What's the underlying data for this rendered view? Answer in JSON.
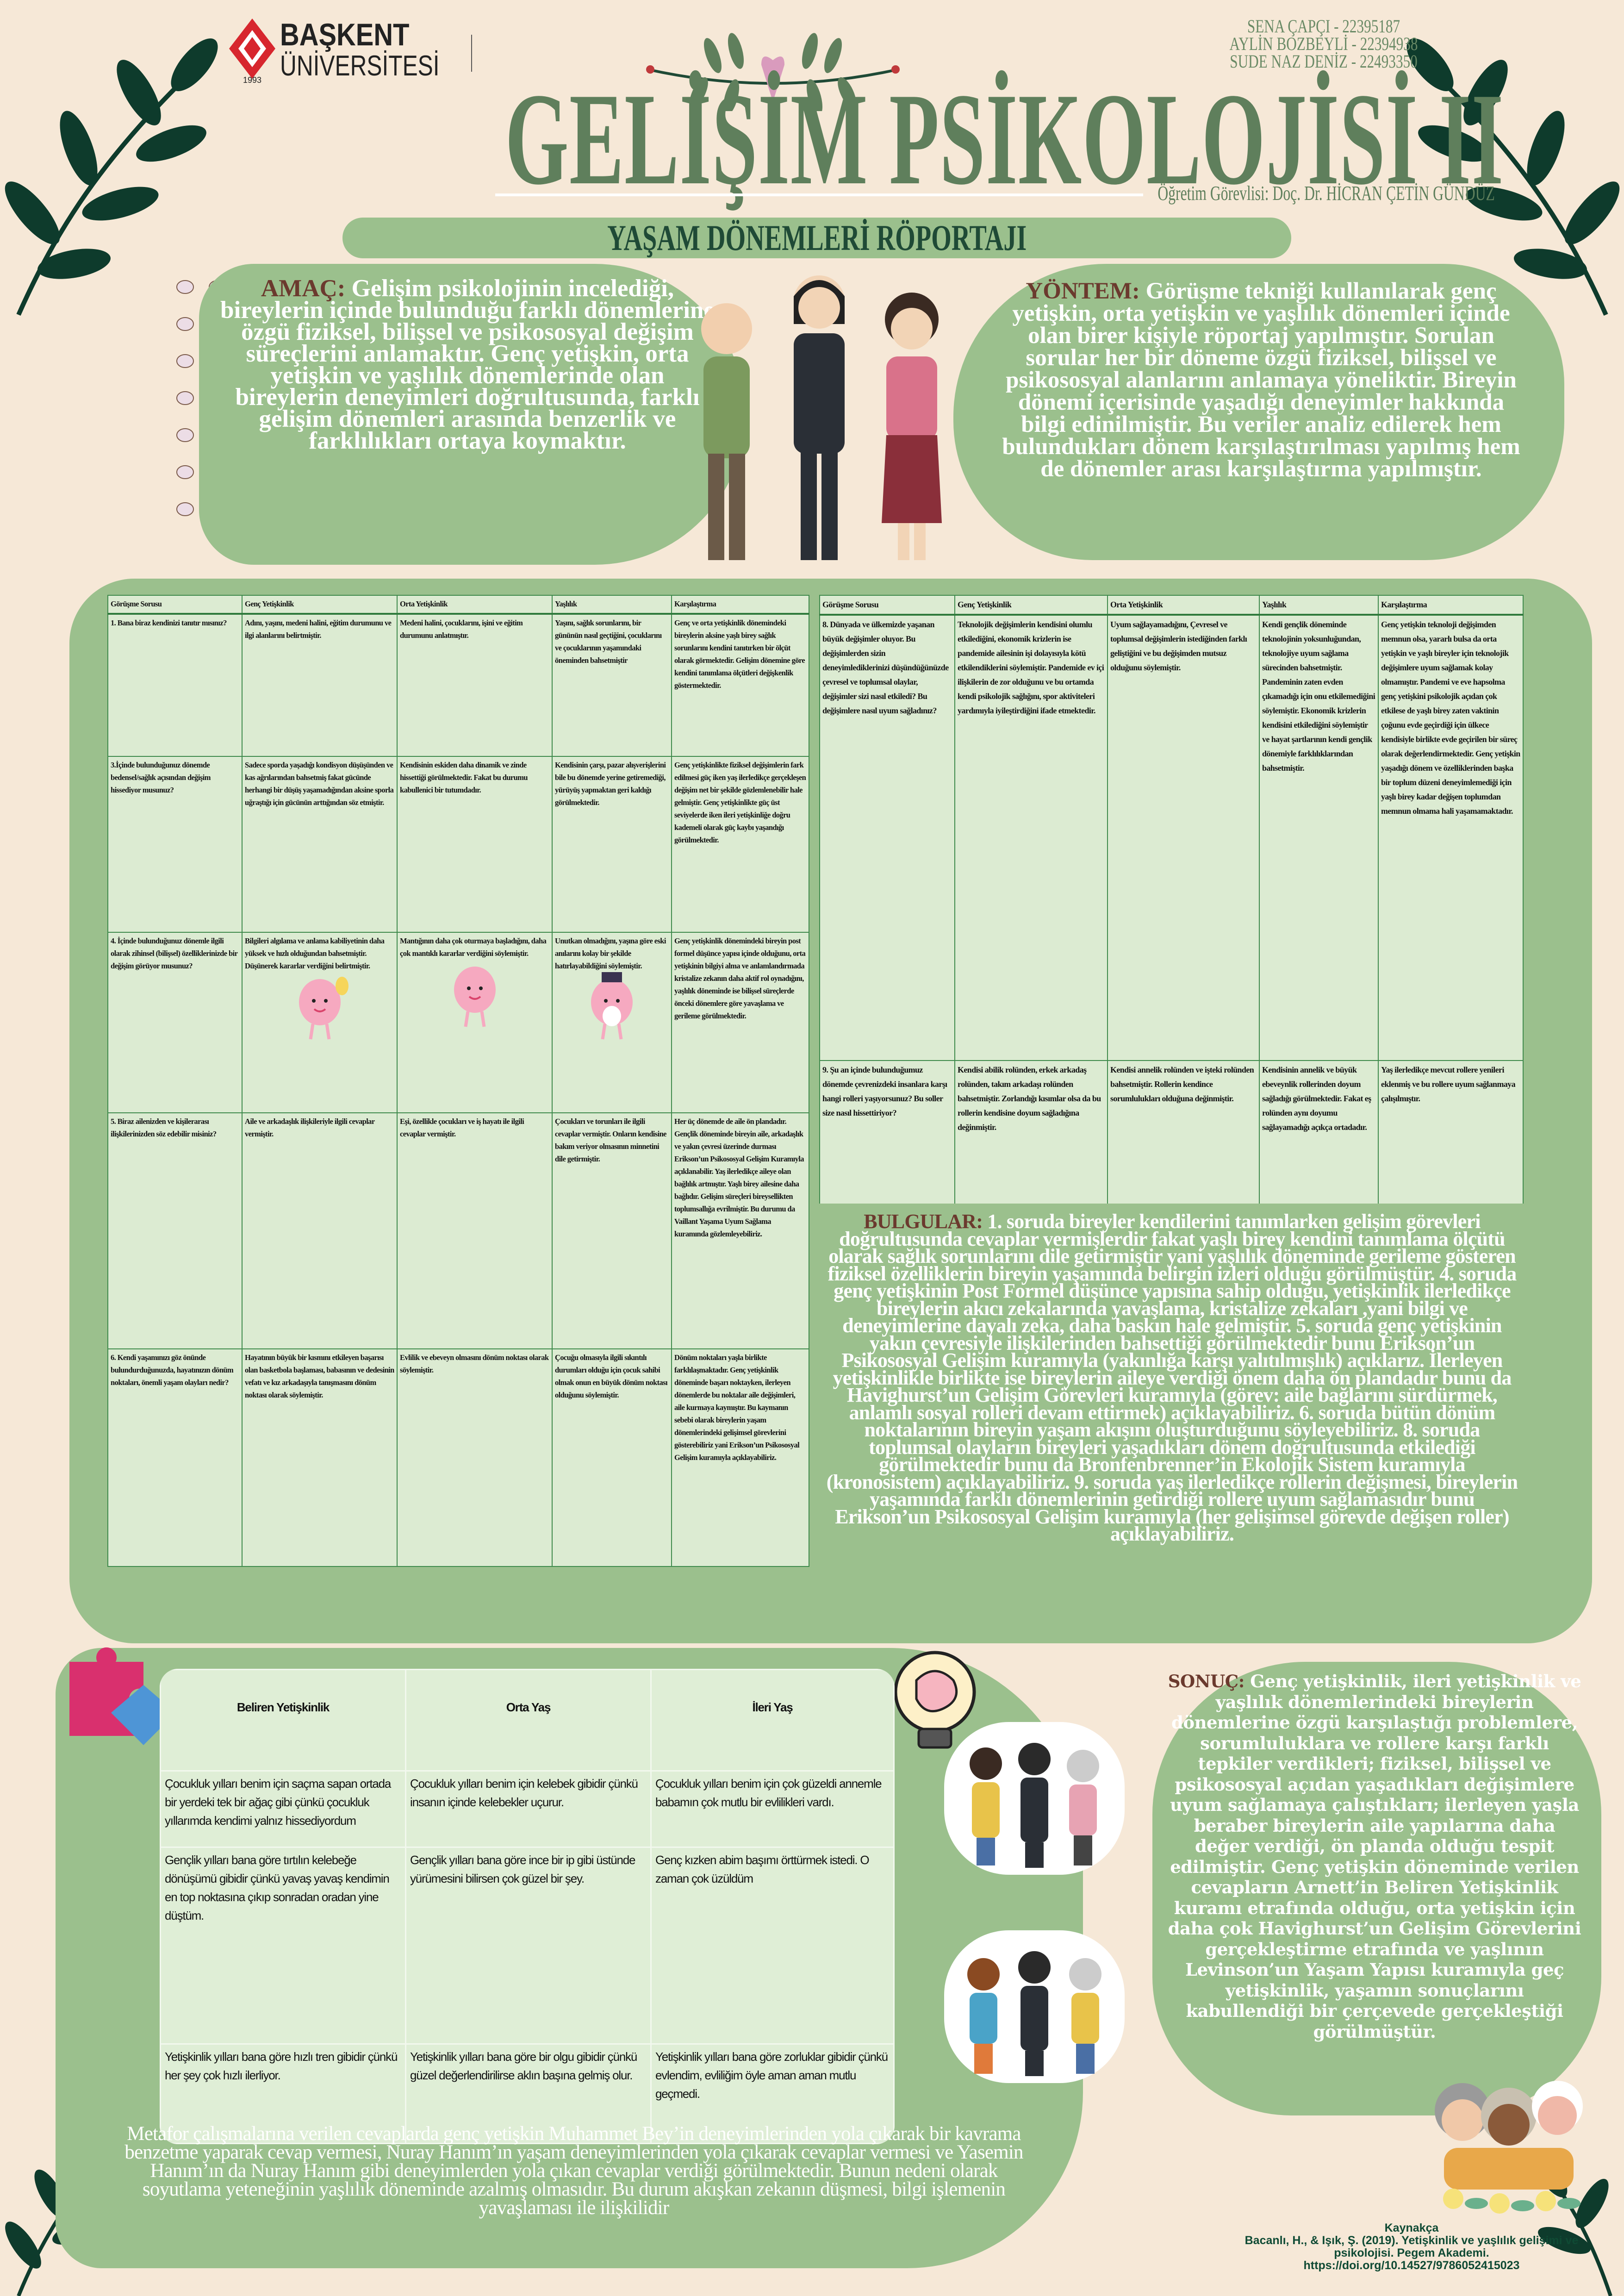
{
  "logo": {
    "name_line1": "BAŞKENT",
    "name_line2": "ÜNİVERSİTESİ",
    "year": "1993"
  },
  "students": [
    "SENA ÇAPÇI - 22395187",
    "AYLİN BOZBEYLİ - 22394938",
    "SUDE NAZ DENİZ - 22493350"
  ],
  "title": "GELİŞİM PSİKOLOJİSİ II",
  "instructor": "Öğretim Görevlisi: Doç. Dr. HİCRAN ÇETİN GÜNDÜZ",
  "banner": "YAŞAM DÖNEMLERİ RÖPORTAJI",
  "amac": {
    "label": "AMAÇ:",
    "text": " Gelişim psikolojinin incelediği, bireylerin içinde bulunduğu farklı dönemlerine özgü fiziksel, bilişsel ve psikososyal değişim süreçlerini anlamaktır. Genç yetişkin, orta yetişkin ve yaşlılık dönemlerinde olan bireylerin deneyimleri doğrultusunda, farklı gelişim dönemleri arasında benzerlik ve farklılıkları ortaya koymaktır."
  },
  "yontem": {
    "label": "YÖNTEM:",
    "text": " Görüşme tekniği kullanılarak genç yetişkin, orta yetişkin ve yaşlılık dönemleri içinde olan birer kişiyle röportaj yapılmıştır. Sorulan sorular her bir döneme özgü fiziksel, bilişsel ve psikososyal alanlarını anlamaya yöneliktir. Bireyin dönemi içerisinde yaşadığı deneyimler hakkında bilgi edinilmiştir. Bu veriler analiz edilerek hem bulundukları dönem karşılaştırılması yapılmış hem de dönemler arası karşılaştırma yapılmıştır."
  },
  "interview_table_left": {
    "headers": [
      "Görüşme Sorusu",
      "Genç Yetişkinlik",
      "Orta Yetişkinlik",
      "Yaşlılık",
      "Karşılaştırma"
    ],
    "rows": [
      [
        "1. Bana biraz kendinizi tanıtır mısınız?",
        "Adını, yaşını, medeni halini, eğitim durumunu ve ilgi alanlarını belirtmiştir.",
        "Medeni halini, çocuklarını, işini ve eğitim durumunu anlatmıştır.",
        "Yaşını, sağlık sorunlarını, bir gününün nasıl geçtiğini, çocuklarını ve çocuklarının yaşamındaki öneminden bahsetmiştir",
        "Genç ve orta yetişkinlik dönemindeki bireylerin aksine yaşlı birey sağlık sorunlarını kendini tanıtırken bir ölçüt olarak görmektedir. Gelişim dönemine göre kendini tanımlama ölçütleri değişkenlik göstermektedir."
      ],
      [
        "3.İçinde bulunduğunuz dönemde bedensel/sağlık açısından değişim hissediyor musunuz?",
        "Sadece sporda yaşadığı kondisyon düşüşünden ve kas ağrılarından bahsetmiş fakat gücünde herhangi bir düşüş yaşamadığından aksine sporla uğraştığı için gücünün arttığından söz etmiştir.",
        "Kendisinin eskiden daha dinamik ve zinde hissettiği görülmektedir. Fakat bu durumu kabullenici bir tutumdadır.",
        "Kendisinin çarşı, pazar alışverişlerini bile bu dönemde yerine getiremediği, yürüyüş yapmaktan geri kaldığı görülmektedir.",
        "Genç yetişkinlikte fiziksel değişimlerin fark edilmesi güç iken yaş ilerledikçe gerçekleşen değişim net bir şekilde gözlemlenebilir hale gelmiştir. Genç yetişkinlikte güç üst seviyelerde iken ileri yetişkinliğe doğru kademeli olarak güç kaybı yaşandığı görülmektedir."
      ],
      [
        "4. İçinde bulunduğunuz dönemle ilgili olarak zihinsel (bilişsel) özelliklerinizde bir değişim görüyor musunuz?",
        "Bilgileri algılama ve anlama kabiliyetinin daha yüksek ve hızlı olduğundan bahsetmiştir. Düşünerek kararlar verdiğini belirtmiştir.",
        "Mantığının daha çok oturmaya başladığını, daha çok mantıklı kararlar verdiğini söylemiştir.",
        "Unutkan olmadığını, yaşına göre eski anılarını kolay bir şekilde hatırlayabildiğini söylemiştir.",
        "Genç yetişkinlik dönemindeki bireyin post formel düşünce yapısı içinde olduğunu, orta yetişkinin bilgiyi alma ve anlamlandırmada kristalize zekanın daha aktif rol oynadığını, yaşlılık döneminde ise bilişsel süreçlerde önceki dönemlere göre yavaşlama ve gerileme görülmektedir."
      ],
      [
        "5. Biraz ailenizden ve kişilerarası ilişkilerinizden söz edebilir misiniz?",
        "Aile ve arkadaşlık ilişkileriyle ilgili cevaplar vermiştir.",
        "Eşi, özellikle çocukları ve iş hayatı ile ilgili cevaplar vermiştir.",
        "Çocukları ve torunları ile ilgili cevaplar vermiştir. Onların kendisine bakım veriyor olmasının minnetini dile getirmiştir.",
        "Her üç dönemde de aile ön plandadır. Gençlik döneminde bireyin aile, arkadaşlık ve yakın çevresi üzerinde durması Erikson’un Psikososyal Gelişim Kuramıyla açıklanabilir. Yaş ilerledikçe aileye olan bağlılık artmıştır. Yaşlı birey ailesine daha bağlıdır. Gelişim süreçleri bireysellikten toplumsallığa evrilmiştir. Bu durumu da Vaillant Yaşama Uyum Sağlama kuramında gözlemleyebiliriz."
      ],
      [
        "6. Kendi yaşamınızı göz önünde bulundurduğunuzda, hayatınızın dönüm noktaları, önemli yaşam olayları nedir?",
        "Hayatının büyük bir kısmını etkileyen başarısı olan basketbola başlaması, babasının ve dedesinin vefatı ve kız arkadaşıyla tanışmasını dönüm noktası olarak söylemiştir.",
        "Evlilik ve ebeveyn olmasını dönüm noktası olarak söylemiştir.",
        "Çocuğu olmasıyla ilgili sıkıntılı durumları olduğu için çocuk sahibi olmak onun en büyük dönüm noktası olduğunu söylemiştir.",
        "Dönüm noktaları yaşla birlikte farklılaşmaktadır. Genç yetişkinlik döneminde başarı noktayken, ilerleyen dönemlerde bu noktalar aile değişimleri, aile kurmaya kaymıştır. Bu kaymanın sebebi olarak bireylerin yaşam dönemlerindeki gelişimsel görevlerini gösterebiliriz yani Erikson’un Psikososyal Gelişim kuramıyla açıklayabiliriz."
      ]
    ]
  },
  "interview_table_right": {
    "headers": [
      "Görüşme Sorusu",
      "Genç Yetişkinlik",
      "Orta Yetişkinlik",
      "Yaşlılık",
      "Karşılaştırma"
    ],
    "rows": [
      [
        "8. Dünyada ve ülkemizde yaşanan büyük değişimler oluyor. Bu değişimlerden sizin deneyimlediklerinizi düşündüğünüzde çevresel ve toplumsal olaylar, değişimler sizi nasıl etkiledi? Bu değişimlere nasıl uyum sağladınız?",
        "Teknolojik değişimlerin kendisini olumlu etkilediğini, ekonomik krizlerin ise pandemide ailesinin işi dolayısıyla kötü etkilendiklerini söylemiştir. Pandemide ev içi ilişkilerin de zor olduğunu ve bu ortamda kendi psikolojik sağlığını, spor aktiviteleri yardımıyla iyileştirdiğini ifade etmektedir.",
        "Uyum sağlayamadığını, Çevresel ve toplumsal değişimlerin istediğinden farklı geliştiğini ve bu değişimden mutsuz olduğunu söylemiştir.",
        "Kendi gençlik döneminde teknolojinin yoksunluğundan, teknolojiye uyum sağlama sürecinden bahsetmiştir. Pandeminin zaten evden çıkamadığı için onu etkilemediğini söylemiştir. Ekonomik krizlerin kendisini etkilediğini söylemiştir ve hayat şartlarının kendi gençlik dönemiyle farklılıklarından bahsetmiştir.",
        "Genç yetişkin teknoloji değişimden memnun olsa, yararlı bulsa da orta yetişkin ve yaşlı bireyler için teknolojik değişimlere uyum sağlamak kolay olmamıştır. Pandemi ve eve hapsolma genç yetişkini psikolojik açıdan çok etkilese de yaşlı birey zaten vaktinin çoğunu evde geçirdiği için ülkece kendisiyle birlikte evde geçirilen bir süreç olarak değerlendirmektedir. Genç yetişkin yaşadığı dönem ve özelliklerinden başka bir toplum düzeni deneyimlemediği için yaşlı birey kadar değişen toplumdan memnun olmama hali yaşamamaktadır."
      ],
      [
        "9. Şu an içinde bulunduğumuz dönemde çevrenizdeki insanlara karşı hangi rolleri yaşıyorsunuz? Bu soller size nasıl hissettiriyor?",
        "Kendisi abilik rolünden, erkek arkadaş rolünden, takım arkadaşı rolünden bahsetmiştir. Zorlandığı kısımlar olsa da bu rollerin kendisine doyum sağladığına değinmiştir.",
        "Kendisi annelik rolünden ve işteki rolünden bahsetmiştir. Rollerin kendince sorumlulukları olduğuna değinmiştir.",
        "Kendisinin annelik ve büyük ebeveynlik rollerinden doyum sağladığı görülmektedir. Fakat eş rolünden aynı doyumu sağlayamadığı açıkça ortadadır.",
        "Yaş ilerledikçe mevcut rollere yenileri eklenmiş ve bu rollere uyum sağlanmaya çalışılmıştır."
      ]
    ]
  },
  "bulgular": {
    "label": "BULGULAR:",
    "text": " 1. soruda bireyler kendilerini tanımlarken gelişim görevleri doğrultusunda cevaplar vermişlerdir fakat yaşlı birey kendini tanımlama ölçütü olarak sağlık sorunlarını dile getirmiştir yani yaşlılık döneminde gerileme gösteren fiziksel özelliklerin bireyin yaşamında belirgin izleri olduğu görülmüştür. 4. soruda genç yetişkinin Post Formel düşünce yapısına sahip olduğu, yetişkinlik ilerledikçe bireylerin akıcı zekalarında yavaşlama, kristalize zekaları ,yani bilgi ve deneyimlerine dayalı zeka, daha baskın hale gelmiştir. 5. soruda genç yetişkinin yakın çevresiyle ilişkilerinden bahsettiği görülmektedir bunu Erikson’un Psikososyal Gelişim kuramıyla (yakınlığa karşı yalıtılmışlık) açıklarız. İlerleyen yetişkinlikle birlikte ise bireylerin aileye verdiği önem daha ön plandadır bunu da Havighurst’un Gelişim Görevleri kuramıyla (görev: aile bağlarını sürdürmek, anlamlı sosyal rolleri devam ettirmek) açıklayabiliriz. 6. soruda bütün dönüm noktalarının bireyin yaşam akışını oluşturduğunu söyleyebiliriz. 8. soruda toplumsal olayların bireyleri yaşadıkları dönem doğrultusunda etkilediği görülmektedir bunu da Bronfenbrenner’in Ekolojik Sistem kuramıyla (kronosistem) açıklayabiliriz. 9. soruda yaş ilerledikçe rollerin değişmesi, bireylerin yaşamında farklı dönemlerinin getirdiği rollere uyum sağlamasıdır bunu Erikson’un Psikososyal Gelişim kuramıyla (her gelişimsel görevde değişen roller) açıklayabiliriz."
  },
  "metaphor_table": {
    "headers": [
      "Beliren Yetişkinlik",
      "Orta Yaş",
      "İleri Yaş"
    ],
    "rows": [
      [
        "Çocukluk yılları benim için saçma sapan ortada bir yerdeki tek bir ağaç gibi çünkü çocukluk yıllarımda kendimi yalnız hissediyordum",
        "Çocukluk yılları benim için kelebek gibidir çünkü insanın içinde kelebekler uçurur.",
        "Çocukluk yılları benim için çok güzeldi annemle babamın çok mutlu bir evlilikleri vardı."
      ],
      [
        "Gençlik yılları bana göre tırtılın kelebeğe dönüşümü gibidir çünkü yavaş yavaş kendimin en top noktasına çıkıp sonradan oradan yine düştüm.",
        "Gençlik yılları bana göre ince bir ip gibi üstünde yürümesini bilirsen çok güzel bir şey.",
        "Genç kızken abim başımı örttürmek istedi. O zaman çok üzüldüm"
      ],
      [
        "Yetişkinlik yılları bana göre hızlı tren gibidir çünkü her şey çok hızlı ilerliyor.",
        "Yetişkinlik yılları bana göre bir olgu gibidir çünkü güzel değerlendirilirse aklın başına gelmiş olur.",
        "Yetişkinlik yılları bana göre zorluklar gibidir çünkü evlendim, evliliğim öyle aman aman mutlu geçmedi."
      ]
    ]
  },
  "metafor_summary": "Metafor çalışmalarına verilen cevaplarda genç yetişkin Muhammet Bey’in deneyimlerinden yola çıkarak bir kavrama benzetme yaparak cevap vermesi, Nuray Hanım’ın yaşam deneyimlerinden yola çıkarak cevaplar vermesi ve Yasemin Hanım’ın da Nuray Hanım gibi deneyimlerden yola çıkan cevaplar verdiği görülmektedir. Bunun nedeni olarak soyutlama yeteneğinin yaşlılık döneminde azalmış olmasıdır. Bu durum akışkan zekanın düşmesi, bilgi işlemenin yavaşlaması ile ilişkilidir",
  "sonuc": {
    "label": "SONUÇ:",
    "text": " Genç yetişkinlik, ileri yetişkinlik ve yaşlılık dönemlerindeki bireylerin dönemlerine özgü karşılaştığı problemlere, sorumluluklara ve rollere karşı farklı tepkiler verdikleri; fiziksel, bilişsel ve psikososyal açıdan yaşadıkları değişimlere uyum sağlamaya çalıştıkları; ilerleyen yaşla beraber bireylerin aile yapılarına daha değer verdiği, ön planda olduğu tespit edilmiştir. Genç yetişkin döneminde verilen cevapların Arnett’in Beliren Yetişkinlik kuramı etrafında olduğu, orta yetişkin için daha çok Havighurst’un Gelişim Görevlerini gerçekleştirme etrafında ve yaşlının Levinson’un Yaşam Yapısı kuramıyla geç yetişkinlik, yaşamın sonuçlarını kabullendiği bir çerçevede gerçekleştiği görülmüştür."
  },
  "kaynakca": {
    "heading": "Kaynakça",
    "lines": [
      "Bacanlı, H., & Işık, Ş. (2019). Yetişkinlik ve yaşlılık gelişimi ve",
      "psikolojisi. Pegem Akademi.",
      "https://doi.org/10.14527/9786052415023"
    ]
  },
  "colors": {
    "background": "#f6e8d7",
    "panel_green": "#9bc08d",
    "title_green": "#5f7f5c",
    "label_brown": "#6b3a2e",
    "leaf_dark": "#0e3b2c",
    "table_cell": "#dcebd2",
    "logo_red": "#d7262e"
  }
}
